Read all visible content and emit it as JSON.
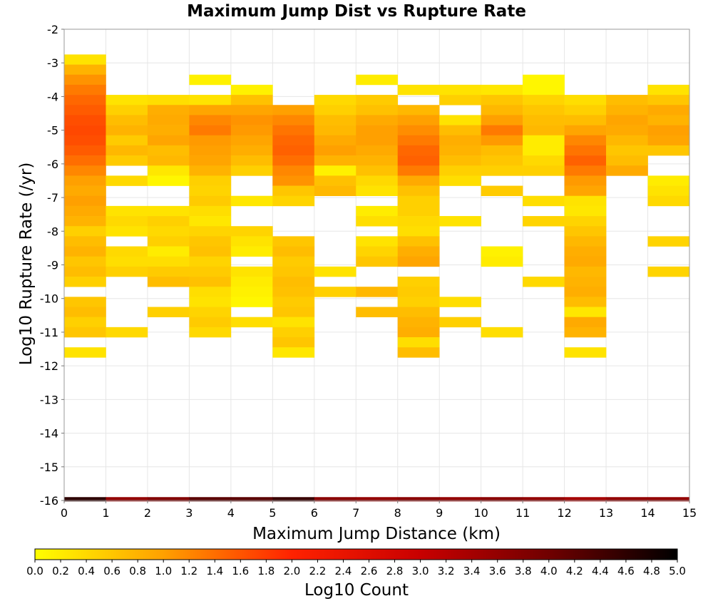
{
  "chart_data": {
    "type": "heatmap",
    "title": "Maximum Jump Dist vs Rupture Rate",
    "xlabel": "Maximum Jump Distance (km)",
    "ylabel": "Log10 Rupture Rate (/yr)",
    "xlim": [
      0,
      15
    ],
    "ylim": [
      -16,
      -2
    ],
    "x_ticks": [
      "0",
      "1",
      "2",
      "3",
      "4",
      "5",
      "6",
      "7",
      "8",
      "9",
      "10",
      "11",
      "12",
      "13",
      "14",
      "15"
    ],
    "y_ticks": [
      "-2",
      "-3",
      "-4",
      "-5",
      "-6",
      "-7",
      "-8",
      "-9",
      "-10",
      "-11",
      "-12",
      "-13",
      "-14",
      "-15",
      "-16"
    ],
    "grid": true,
    "bin_width_x": 1,
    "bin_height_y": 0.3,
    "colorbar": {
      "label": "Log10 Count",
      "min": 0.0,
      "max": 5.0,
      "ticks": [
        "0.0",
        "0.2",
        "0.4",
        "0.6",
        "0.8",
        "1.0",
        "1.2",
        "1.4",
        "1.6",
        "1.8",
        "2.0",
        "2.2",
        "2.4",
        "2.6",
        "2.8",
        "3.0",
        "3.2",
        "3.4",
        "3.6",
        "3.8",
        "4.0",
        "4.2",
        "4.4",
        "4.6",
        "4.8",
        "5.0"
      ],
      "colors": [
        "#ffff00",
        "#ffa000",
        "#ff2200",
        "#c80000",
        "#700000",
        "#000000"
      ]
    },
    "columns": [
      {
        "x": 0,
        "cells": [
          [
            -2.9,
            0.3
          ],
          [
            -3.2,
            0.8
          ],
          [
            -3.5,
            1.1
          ],
          [
            -3.8,
            1.3
          ],
          [
            -4.1,
            1.45
          ],
          [
            -4.4,
            1.55
          ],
          [
            -4.7,
            1.65
          ],
          [
            -5.0,
            1.7
          ],
          [
            -5.3,
            1.65
          ],
          [
            -5.6,
            1.55
          ],
          [
            -5.9,
            1.4
          ],
          [
            -6.2,
            1.2
          ],
          [
            -6.5,
            1.0
          ],
          [
            -6.8,
            0.9
          ],
          [
            -7.1,
            1.0
          ],
          [
            -7.4,
            0.9
          ],
          [
            -7.7,
            0.8
          ],
          [
            -8.0,
            0.5
          ],
          [
            -8.3,
            0.7
          ],
          [
            -8.6,
            0.8
          ],
          [
            -8.9,
            0.6
          ],
          [
            -9.2,
            0.7
          ],
          [
            -9.5,
            0.5
          ],
          [
            -10.1,
            0.6
          ],
          [
            -10.4,
            0.7
          ],
          [
            -10.7,
            0.5
          ],
          [
            -11.0,
            0.6
          ],
          [
            -11.6,
            0.3
          ]
        ]
      },
      {
        "x": 1,
        "cells": [
          [
            -4.1,
            0.3
          ],
          [
            -4.4,
            0.5
          ],
          [
            -4.7,
            0.7
          ],
          [
            -5.0,
            0.8
          ],
          [
            -5.3,
            0.55
          ],
          [
            -5.6,
            0.75
          ],
          [
            -5.9,
            0.55
          ],
          [
            -6.5,
            0.4
          ],
          [
            -7.4,
            0.3
          ],
          [
            -7.7,
            0.4
          ],
          [
            -8.0,
            0.3
          ],
          [
            -8.6,
            0.4
          ],
          [
            -8.9,
            0.35
          ],
          [
            -9.2,
            0.5
          ],
          [
            -11.0,
            0.4
          ]
        ]
      },
      {
        "x": 2,
        "cells": [
          [
            -4.1,
            0.35
          ],
          [
            -4.4,
            0.85
          ],
          [
            -4.7,
            0.9
          ],
          [
            -5.0,
            0.85
          ],
          [
            -5.3,
            0.95
          ],
          [
            -5.6,
            0.7
          ],
          [
            -5.9,
            0.75
          ],
          [
            -6.2,
            0.25
          ],
          [
            -6.5,
            0.1
          ],
          [
            -7.4,
            0.3
          ],
          [
            -7.7,
            0.5
          ],
          [
            -8.0,
            0.4
          ],
          [
            -8.3,
            0.5
          ],
          [
            -8.6,
            0.2
          ],
          [
            -8.9,
            0.35
          ],
          [
            -9.2,
            0.55
          ],
          [
            -9.5,
            0.7
          ],
          [
            -10.4,
            0.5
          ]
        ]
      },
      {
        "x": 3,
        "cells": [
          [
            -3.5,
            0.15
          ],
          [
            -4.1,
            0.3
          ],
          [
            -4.4,
            0.95
          ],
          [
            -4.7,
            1.2
          ],
          [
            -5.0,
            1.3
          ],
          [
            -5.3,
            1.05
          ],
          [
            -5.6,
            1.0
          ],
          [
            -5.9,
            0.95
          ],
          [
            -6.2,
            0.8
          ],
          [
            -6.5,
            0.5
          ],
          [
            -6.8,
            0.45
          ],
          [
            -7.1,
            0.55
          ],
          [
            -7.4,
            0.35
          ],
          [
            -7.7,
            0.25
          ],
          [
            -8.0,
            0.45
          ],
          [
            -8.3,
            0.6
          ],
          [
            -8.6,
            0.65
          ],
          [
            -8.9,
            0.45
          ],
          [
            -9.2,
            0.55
          ],
          [
            -9.5,
            0.65
          ],
          [
            -9.8,
            0.35
          ],
          [
            -10.1,
            0.3
          ],
          [
            -10.4,
            0.45
          ],
          [
            -10.7,
            0.55
          ],
          [
            -11.0,
            0.4
          ]
        ]
      },
      {
        "x": 4,
        "cells": [
          [
            -3.8,
            0.15
          ],
          [
            -4.1,
            0.65
          ],
          [
            -4.4,
            0.95
          ],
          [
            -4.7,
            1.1
          ],
          [
            -5.0,
            1.05
          ],
          [
            -5.3,
            0.95
          ],
          [
            -5.6,
            0.85
          ],
          [
            -5.9,
            0.7
          ],
          [
            -6.2,
            0.5
          ],
          [
            -7.1,
            0.25
          ],
          [
            -8.0,
            0.45
          ],
          [
            -8.3,
            0.3
          ],
          [
            -8.6,
            0.2
          ],
          [
            -9.2,
            0.3
          ],
          [
            -9.5,
            0.2
          ],
          [
            -9.8,
            0.15
          ],
          [
            -10.1,
            0.1
          ],
          [
            -10.7,
            0.35
          ]
        ]
      },
      {
        "x": 5,
        "cells": [
          [
            -4.4,
            1.0
          ],
          [
            -4.7,
            1.2
          ],
          [
            -5.0,
            1.35
          ],
          [
            -5.3,
            1.45
          ],
          [
            -5.6,
            1.5
          ],
          [
            -5.9,
            1.4
          ],
          [
            -6.2,
            1.2
          ],
          [
            -6.5,
            1.1
          ],
          [
            -6.8,
            0.6
          ],
          [
            -7.1,
            0.45
          ],
          [
            -8.3,
            0.6
          ],
          [
            -8.6,
            0.7
          ],
          [
            -8.9,
            0.55
          ],
          [
            -9.2,
            0.6
          ],
          [
            -9.5,
            0.7
          ],
          [
            -9.8,
            0.65
          ],
          [
            -10.1,
            0.55
          ],
          [
            -10.4,
            0.6
          ],
          [
            -10.7,
            0.3
          ],
          [
            -11.0,
            0.5
          ],
          [
            -11.3,
            0.6
          ],
          [
            -11.6,
            0.25
          ]
        ]
      },
      {
        "x": 6,
        "cells": [
          [
            -4.1,
            0.4
          ],
          [
            -4.4,
            0.5
          ],
          [
            -4.7,
            0.7
          ],
          [
            -5.0,
            0.75
          ],
          [
            -5.3,
            0.9
          ],
          [
            -5.6,
            1.0
          ],
          [
            -5.9,
            0.8
          ],
          [
            -6.2,
            0.15
          ],
          [
            -6.5,
            0.65
          ],
          [
            -6.8,
            0.75
          ],
          [
            -9.2,
            0.3
          ],
          [
            -9.8,
            0.5
          ]
        ]
      },
      {
        "x": 7,
        "cells": [
          [
            -3.5,
            0.2
          ],
          [
            -4.1,
            0.55
          ],
          [
            -4.4,
            0.65
          ],
          [
            -4.7,
            0.9
          ],
          [
            -5.0,
            1.0
          ],
          [
            -5.3,
            1.0
          ],
          [
            -5.6,
            0.9
          ],
          [
            -5.9,
            0.8
          ],
          [
            -6.2,
            0.65
          ],
          [
            -6.5,
            0.4
          ],
          [
            -6.8,
            0.3
          ],
          [
            -7.4,
            0.2
          ],
          [
            -7.7,
            0.35
          ],
          [
            -8.3,
            0.3
          ],
          [
            -8.6,
            0.45
          ],
          [
            -8.9,
            0.6
          ],
          [
            -9.8,
            0.75
          ],
          [
            -10.4,
            0.7
          ]
        ]
      },
      {
        "x": 8,
        "cells": [
          [
            -3.8,
            0.3
          ],
          [
            -4.4,
            0.75
          ],
          [
            -4.7,
            1.0
          ],
          [
            -5.0,
            1.15
          ],
          [
            -5.3,
            1.3
          ],
          [
            -5.6,
            1.45
          ],
          [
            -5.9,
            1.5
          ],
          [
            -6.2,
            1.3
          ],
          [
            -6.5,
            0.9
          ],
          [
            -6.8,
            0.65
          ],
          [
            -7.1,
            0.5
          ],
          [
            -7.4,
            0.5
          ],
          [
            -7.7,
            0.4
          ],
          [
            -8.0,
            0.35
          ],
          [
            -8.3,
            0.65
          ],
          [
            -8.6,
            0.85
          ],
          [
            -8.9,
            0.95
          ],
          [
            -9.5,
            0.5
          ],
          [
            -9.8,
            0.55
          ],
          [
            -10.1,
            0.5
          ],
          [
            -10.4,
            0.7
          ],
          [
            -10.7,
            0.8
          ],
          [
            -11.0,
            0.85
          ],
          [
            -11.3,
            0.35
          ],
          [
            -11.6,
            0.7
          ]
        ]
      },
      {
        "x": 9,
        "cells": [
          [
            -3.8,
            0.3
          ],
          [
            -4.1,
            0.5
          ],
          [
            -4.7,
            0.3
          ],
          [
            -5.0,
            0.7
          ],
          [
            -5.3,
            0.85
          ],
          [
            -5.6,
            0.8
          ],
          [
            -5.9,
            0.7
          ],
          [
            -6.2,
            0.5
          ],
          [
            -6.5,
            0.35
          ],
          [
            -7.7,
            0.3
          ],
          [
            -10.1,
            0.35
          ],
          [
            -10.7,
            0.5
          ]
        ]
      },
      {
        "x": 10,
        "cells": [
          [
            -3.8,
            0.25
          ],
          [
            -4.1,
            0.6
          ],
          [
            -4.4,
            0.75
          ],
          [
            -4.7,
            1.0
          ],
          [
            -5.0,
            1.3
          ],
          [
            -5.3,
            1.05
          ],
          [
            -5.6,
            0.7
          ],
          [
            -5.9,
            0.6
          ],
          [
            -6.2,
            0.5
          ],
          [
            -6.8,
            0.55
          ],
          [
            -8.6,
            0.15
          ],
          [
            -8.9,
            0.2
          ],
          [
            -11.0,
            0.35
          ]
        ]
      },
      {
        "x": 11,
        "cells": [
          [
            -3.5,
            0.1
          ],
          [
            -3.8,
            0.1
          ],
          [
            -4.1,
            0.45
          ],
          [
            -4.4,
            0.6
          ],
          [
            -4.7,
            0.7
          ],
          [
            -5.0,
            0.75
          ],
          [
            -5.3,
            0.2
          ],
          [
            -5.6,
            0.2
          ],
          [
            -5.9,
            0.4
          ],
          [
            -6.2,
            0.5
          ],
          [
            -7.1,
            0.35
          ],
          [
            -7.7,
            0.45
          ],
          [
            -9.5,
            0.4
          ]
        ]
      },
      {
        "x": 12,
        "cells": [
          [
            -4.1,
            0.35
          ],
          [
            -4.4,
            0.5
          ],
          [
            -4.7,
            0.7
          ],
          [
            -5.0,
            0.95
          ],
          [
            -5.3,
            1.2
          ],
          [
            -5.6,
            1.35
          ],
          [
            -5.9,
            1.5
          ],
          [
            -6.2,
            1.3
          ],
          [
            -6.5,
            1.05
          ],
          [
            -6.8,
            0.95
          ],
          [
            -7.1,
            0.3
          ],
          [
            -7.4,
            0.25
          ],
          [
            -7.7,
            0.45
          ],
          [
            -8.0,
            0.6
          ],
          [
            -8.3,
            0.75
          ],
          [
            -8.6,
            0.85
          ],
          [
            -8.9,
            0.9
          ],
          [
            -9.2,
            0.75
          ],
          [
            -9.5,
            0.8
          ],
          [
            -9.8,
            0.85
          ],
          [
            -10.1,
            0.7
          ],
          [
            -10.4,
            0.25
          ],
          [
            -10.7,
            0.9
          ],
          [
            -11.0,
            0.8
          ],
          [
            -11.6,
            0.3
          ]
        ]
      },
      {
        "x": 13,
        "cells": [
          [
            -4.1,
            0.7
          ],
          [
            -4.4,
            0.8
          ],
          [
            -4.7,
            0.95
          ],
          [
            -5.0,
            0.9
          ],
          [
            -5.3,
            0.75
          ],
          [
            -5.6,
            0.6
          ],
          [
            -5.9,
            0.7
          ],
          [
            -6.2,
            0.9
          ]
        ]
      },
      {
        "x": 14,
        "cells": [
          [
            -3.8,
            0.3
          ],
          [
            -4.1,
            0.6
          ],
          [
            -4.4,
            0.9
          ],
          [
            -4.7,
            0.8
          ],
          [
            -5.0,
            1.0
          ],
          [
            -5.3,
            0.95
          ],
          [
            -5.6,
            0.6
          ],
          [
            -6.5,
            0.2
          ],
          [
            -6.8,
            0.3
          ],
          [
            -7.1,
            0.4
          ],
          [
            -8.3,
            0.45
          ],
          [
            -9.2,
            0.45
          ]
        ]
      }
    ],
    "bottom_row": {
      "y": -16.0,
      "values": [
        4.6,
        3.6,
        3.8,
        4.2,
        4.2,
        4.5,
        3.7,
        3.6,
        3.7,
        3.6,
        3.7,
        3.6,
        3.4,
        3.6,
        3.6
      ]
    }
  }
}
